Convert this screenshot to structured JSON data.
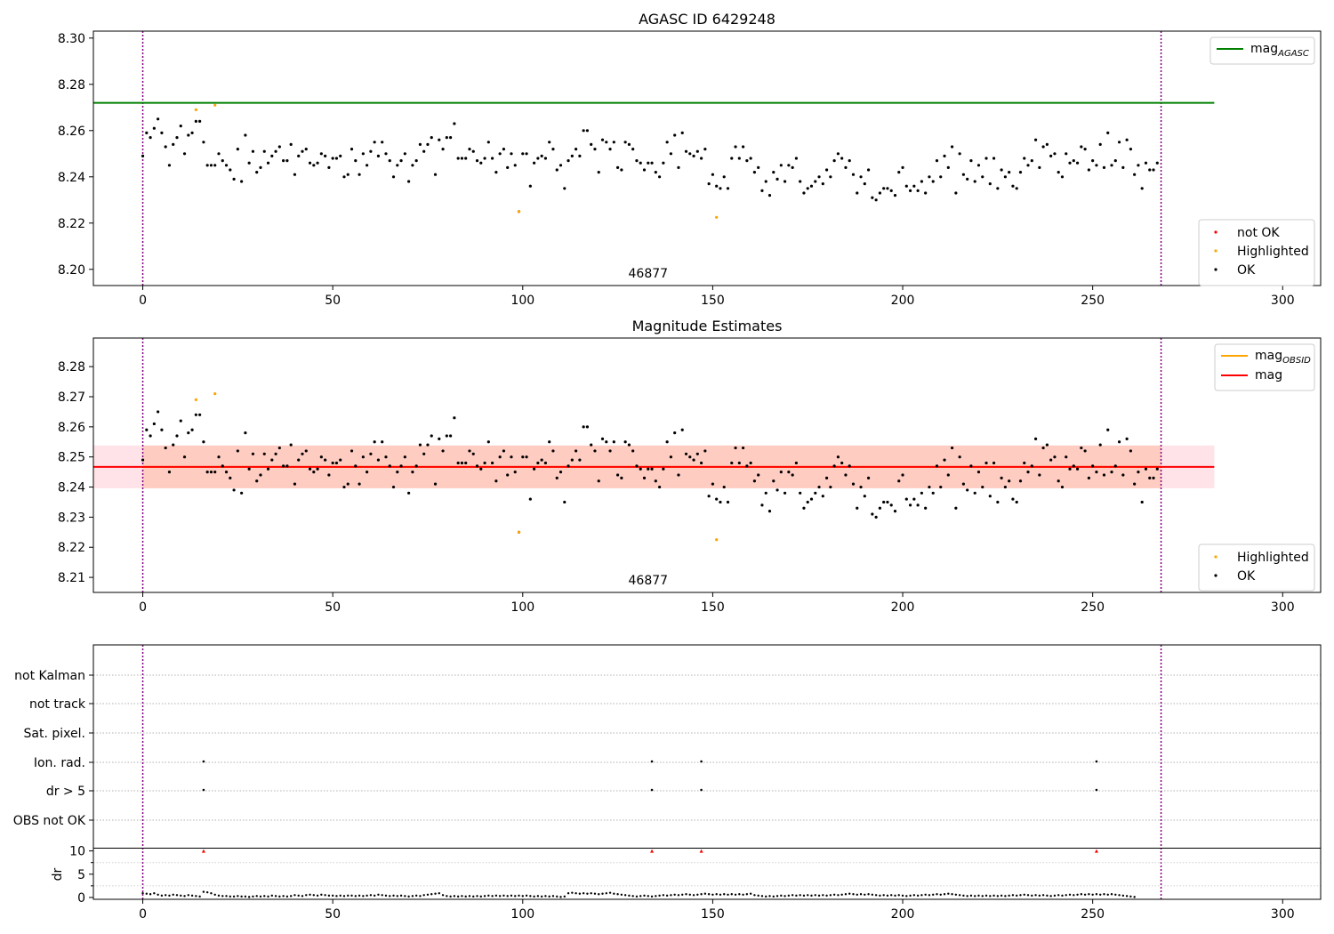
{
  "colors": {
    "ok": "#000000",
    "highlighted": "#ffa500",
    "not_ok": "#ff0000",
    "agasc_line": "#008000",
    "mag_line": "#ff0000",
    "mag_obsid_line": "#ffa500",
    "band_outer": "#ffc0cb",
    "band_inner": "#ffa07a",
    "boundary": "#800080"
  },
  "chart_data": [
    {
      "type": "scatter",
      "title": "AGASC ID 6429248",
      "xlim": [
        -13,
        310
      ],
      "ylim": [
        8.193,
        8.303
      ],
      "xticks": [
        0,
        50,
        100,
        150,
        200,
        250,
        300
      ],
      "yticks": [
        8.2,
        8.22,
        8.24,
        8.26,
        8.28,
        8.3
      ],
      "ytick_labels": [
        "8.20",
        "8.22",
        "8.24",
        "8.26",
        "8.28",
        "8.30"
      ],
      "annotation": "46877",
      "annotation_x": 133,
      "obsid_bounds": [
        0,
        268
      ],
      "mag_agasc": 8.272,
      "mag_agasc_range": [
        -13,
        282
      ],
      "legend_lines": [
        {
          "label": "mag",
          "sub": "AGASC",
          "color": "#008000"
        }
      ],
      "legend_points": [
        {
          "label": "not OK",
          "color": "#ff0000"
        },
        {
          "label": "Highlighted",
          "color": "#ffa500"
        },
        {
          "label": "OK",
          "color": "#000000"
        }
      ],
      "highlighted": [
        [
          14,
          8.269
        ],
        [
          19,
          8.271
        ],
        [
          99,
          8.225
        ],
        [
          151,
          8.2225
        ]
      ],
      "ok_y": [
        8.249,
        8.259,
        8.257,
        8.261,
        8.265,
        8.259,
        8.253,
        8.245,
        8.254,
        8.257,
        8.262,
        8.25,
        8.258,
        8.259,
        8.264,
        8.264,
        8.255,
        8.245,
        8.245,
        8.245,
        8.25,
        8.247,
        8.245,
        8.243,
        8.239,
        8.252,
        8.238,
        8.258,
        8.246,
        8.251,
        8.242,
        8.244,
        8.251,
        8.246,
        8.249,
        8.251,
        8.253,
        8.247,
        8.247,
        8.254,
        8.241,
        8.249,
        8.251,
        8.252,
        8.246,
        8.245,
        8.246,
        8.25,
        8.249,
        8.244,
        8.248,
        8.248,
        8.249,
        8.24,
        8.241,
        8.252,
        8.247,
        8.241,
        8.25,
        8.245,
        8.251,
        8.255,
        8.249,
        8.255,
        8.25,
        8.247,
        8.24,
        8.245,
        8.247,
        8.25,
        8.238,
        8.245,
        8.247,
        8.254,
        8.251,
        8.254,
        8.257,
        8.241,
        8.256,
        8.252,
        8.257,
        8.257,
        8.263,
        8.248,
        8.248,
        8.248,
        8.252,
        8.251,
        8.247,
        8.246,
        8.248,
        8.255,
        8.248,
        8.242,
        8.25,
        8.252,
        8.244,
        8.25,
        8.245,
        8.225,
        8.25,
        8.25,
        8.236,
        8.246,
        8.248,
        8.249,
        8.248,
        8.255,
        8.252,
        8.243,
        8.245,
        8.235,
        8.247,
        8.249,
        8.252,
        8.249,
        8.26,
        8.26,
        8.254,
        8.252,
        8.242,
        8.256,
        8.255,
        8.252,
        8.255,
        8.244,
        8.243,
        8.255,
        8.254,
        8.252,
        8.247,
        8.246,
        8.243,
        8.246,
        8.246,
        8.242,
        8.24,
        8.246,
        8.255,
        8.25,
        8.258,
        8.244,
        8.259,
        8.251,
        8.25,
        8.249,
        8.251,
        8.248,
        8.252,
        8.237,
        8.241,
        8.236,
        8.235,
        8.24,
        8.235,
        8.248,
        8.253,
        8.248,
        8.253,
        8.247,
        8.248,
        8.242,
        8.244,
        8.234,
        8.238,
        8.232,
        8.242,
        8.239,
        8.245,
        8.238,
        8.245,
        8.244,
        8.248,
        8.238,
        8.233,
        8.235,
        8.236,
        8.238,
        8.24,
        8.237,
        8.243,
        8.24,
        8.247,
        8.25,
        8.248,
        8.244,
        8.247,
        8.241,
        8.233,
        8.24,
        8.237,
        8.243,
        8.231,
        8.23,
        8.233,
        8.235,
        8.235,
        8.234,
        8.232,
        8.242,
        8.244,
        8.236,
        8.234,
        8.236,
        8.234,
        8.238,
        8.233,
        8.24,
        8.238,
        8.247,
        8.24,
        8.249,
        8.244,
        8.253,
        8.233,
        8.25,
        8.241,
        8.239,
        8.247,
        8.238,
        8.245,
        8.24,
        8.248,
        8.237,
        8.248,
        8.235,
        8.243,
        8.24,
        8.242,
        8.236,
        8.235,
        8.242,
        8.248,
        8.245,
        8.247,
        8.256,
        8.244,
        8.253,
        8.254,
        8.249,
        8.25,
        8.242,
        8.24,
        8.25,
        8.246,
        8.247,
        8.246,
        8.253,
        8.252,
        8.243,
        8.247,
        8.245,
        8.254,
        8.244,
        8.259,
        8.245,
        8.247,
        8.255,
        8.244,
        8.256,
        8.252,
        8.241,
        8.245,
        8.235,
        8.246,
        8.243,
        8.243,
        8.246
      ]
    },
    {
      "type": "scatter",
      "title": "Magnitude Estimates",
      "xlim": [
        -13,
        310
      ],
      "ylim": [
        8.205,
        8.2895
      ],
      "xticks": [
        0,
        50,
        100,
        150,
        200,
        250,
        300
      ],
      "yticks": [
        8.21,
        8.22,
        8.23,
        8.24,
        8.25,
        8.26,
        8.27,
        8.28
      ],
      "ytick_labels": [
        "8.21",
        "8.22",
        "8.23",
        "8.24",
        "8.25",
        "8.26",
        "8.27",
        "8.28"
      ],
      "annotation": "46877",
      "annotation_x": 133,
      "obsid_bounds": [
        0,
        268
      ],
      "mag": 8.2467,
      "band_outer": [
        8.2396,
        8.2538
      ],
      "band_outer_range": [
        -13,
        282
      ],
      "band_inner": [
        8.2396,
        8.2538
      ],
      "band_inner_range": [
        0,
        268
      ],
      "legend_lines": [
        {
          "label": "mag",
          "sub": "OBSID",
          "color": "#ffa500"
        },
        {
          "label": "mag",
          "sub": "",
          "color": "#ff0000"
        }
      ],
      "legend_points": [
        {
          "label": "Highlighted",
          "color": "#ffa500"
        },
        {
          "label": "OK",
          "color": "#000000"
        }
      ]
    },
    {
      "type": "scatter",
      "title": "",
      "xlim": [
        -13,
        310
      ],
      "xticks": [
        0,
        50,
        100,
        150,
        200,
        250,
        300
      ],
      "obsid_bounds": [
        0,
        268
      ],
      "flag_rows": [
        "not Kalman",
        "not track",
        "Sat. pixel.",
        "Ion. rad.",
        "dr > 5",
        "OBS not OK"
      ],
      "flag_points": {
        "Ion. rad.": [
          16,
          134,
          147,
          251
        ],
        "dr > 5": [
          16,
          134,
          147,
          251
        ]
      },
      "dr": {
        "ylabel": "dr",
        "ylim": [
          -0.4,
          10.5
        ],
        "yticks": [
          0,
          5,
          10
        ],
        "ytick_labels": [
          "0",
          "5",
          "10"
        ],
        "clipped_x": [
          16,
          134,
          147,
          251
        ],
        "values": [
          0.9,
          0.8,
          0.7,
          0.9,
          0.6,
          0.4,
          0.5,
          0.4,
          0.6,
          0.5,
          0.4,
          0.3,
          0.5,
          0.4,
          0.3,
          0.2,
          1.2,
          1.1,
          0.9,
          0.6,
          0.4,
          0.3,
          0.3,
          0.2,
          0.2,
          0.3,
          0.2,
          0.2,
          0.1,
          0.2,
          0.3,
          0.2,
          0.3,
          0.2,
          0.4,
          0.3,
          0.2,
          0.3,
          0.2,
          0.3,
          0.5,
          0.4,
          0.3,
          0.5,
          0.6,
          0.5,
          0.4,
          0.6,
          0.5,
          0.4,
          0.4,
          0.3,
          0.4,
          0.3,
          0.4,
          0.4,
          0.3,
          0.4,
          0.3,
          0.4,
          0.5,
          0.4,
          0.6,
          0.5,
          0.4,
          0.3,
          0.4,
          0.3,
          0.4,
          0.3,
          0.2,
          0.3,
          0.4,
          0.3,
          0.5,
          0.6,
          0.7,
          0.8,
          0.9,
          0.5,
          0.3,
          0.2,
          0.3,
          0.2,
          0.3,
          0.2,
          0.3,
          0.2,
          0.3,
          0.2,
          0.3,
          0.4,
          0.3,
          0.4,
          0.3,
          0.4,
          0.3,
          0.4,
          0.3,
          0.4,
          0.3,
          0.4,
          0.3,
          0.2,
          0.3,
          0.2,
          0.3,
          0.2,
          0.3,
          0.2,
          0.1,
          0.2,
          0.9,
          1.0,
          0.9,
          0.8,
          0.9,
          0.8,
          0.9,
          0.8,
          0.7,
          0.8,
          0.9,
          1.0,
          0.8,
          0.7,
          0.6,
          0.5,
          0.4,
          0.3,
          0.2,
          0.3,
          0.4,
          0.3,
          0.2,
          0.3,
          0.4,
          0.5,
          0.4,
          0.5,
          0.6,
          0.5,
          0.6,
          0.7,
          0.6,
          0.5,
          0.6,
          0.7,
          0.8,
          0.7,
          0.6,
          0.7,
          0.6,
          0.7,
          0.6,
          0.7,
          0.6,
          0.7,
          0.6,
          0.7,
          0.8,
          0.5,
          0.4,
          0.3,
          0.2,
          0.3,
          0.2,
          0.3,
          0.4,
          0.3,
          0.4,
          0.5,
          0.4,
          0.5,
          0.4,
          0.5,
          0.4,
          0.5,
          0.4,
          0.5,
          0.4,
          0.5,
          0.6,
          0.5,
          0.6,
          0.7,
          0.8,
          0.7,
          0.6,
          0.7,
          0.6,
          0.7,
          0.6,
          0.5,
          0.4,
          0.5,
          0.4,
          0.5,
          0.4,
          0.5,
          0.4,
          0.3,
          0.4,
          0.5,
          0.4,
          0.5,
          0.6,
          0.5,
          0.6,
          0.7,
          0.6,
          0.7,
          0.8,
          0.7,
          0.6,
          0.5,
          0.4,
          0.3,
          0.4,
          0.3,
          0.4,
          0.3,
          0.4,
          0.3,
          0.4,
          0.3,
          0.4,
          0.3,
          0.4,
          0.5,
          0.4,
          0.5,
          0.6,
          0.5,
          0.4,
          0.5,
          0.4,
          0.5,
          0.4,
          0.3,
          0.4,
          0.5,
          0.4,
          0.5,
          0.6,
          0.5,
          0.6,
          0.7,
          0.6,
          0.7,
          0.6,
          0.7,
          0.6,
          0.7,
          0.6,
          0.7,
          0.6,
          0.5,
          0.4,
          0.3,
          0.2,
          0.1
        ]
      }
    }
  ]
}
